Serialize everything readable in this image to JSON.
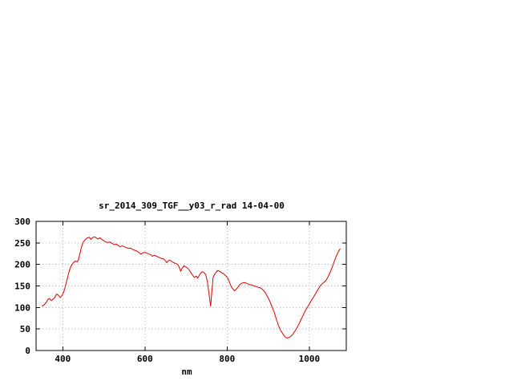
{
  "chart_data": {
    "type": "line",
    "title": "sr_2014_309_TGF__y03_r_rad 14-04-00",
    "xlabel": "nm",
    "ylabel": "",
    "xlim": [
      335,
      1090
    ],
    "ylim": [
      0,
      300
    ],
    "x_ticks": [
      400,
      600,
      800,
      1000
    ],
    "y_ticks": [
      0,
      50,
      100,
      150,
      200,
      250,
      300
    ],
    "grid": true,
    "legend": "none",
    "line_color": "#dd0000",
    "grid_color": "#b4b4b4",
    "border_color": "#000000",
    "series": [
      {
        "name": "sr_2014_309_TGF__y03_r_rad",
        "x": [
          350,
          355,
          360,
          363,
          367,
          372,
          376,
          380,
          385,
          390,
          394,
          398,
          402,
          406,
          410,
          415,
          420,
          425,
          430,
          435,
          438,
          442,
          446,
          450,
          455,
          460,
          465,
          468,
          472,
          476,
          480,
          485,
          490,
          495,
          500,
          505,
          510,
          515,
          520,
          525,
          530,
          535,
          540,
          545,
          550,
          555,
          560,
          565,
          570,
          575,
          580,
          585,
          590,
          595,
          600,
          605,
          610,
          615,
          618,
          622,
          626,
          630,
          635,
          640,
          645,
          650,
          653,
          656,
          660,
          665,
          670,
          675,
          680,
          684,
          687,
          690,
          695,
          700,
          705,
          710,
          715,
          720,
          725,
          728,
          732,
          736,
          740,
          744,
          748,
          752,
          756,
          760,
          763,
          766,
          770,
          774,
          778,
          782,
          786,
          790,
          794,
          798,
          802,
          806,
          810,
          814,
          818,
          822,
          826,
          830,
          835,
          840,
          845,
          850,
          855,
          860,
          865,
          870,
          875,
          880,
          885,
          890,
          895,
          900,
          905,
          910,
          915,
          920,
          925,
          930,
          935,
          938,
          942,
          946,
          950,
          955,
          960,
          965,
          970,
          975,
          980,
          985,
          990,
          995,
          1000,
          1005,
          1010,
          1015,
          1020,
          1025,
          1030,
          1035,
          1040,
          1045,
          1050,
          1055,
          1060,
          1065,
          1070,
          1075
        ],
        "y": [
          103,
          107,
          112,
          118,
          121,
          116,
          119,
          123,
          131,
          128,
          123,
          128,
          135,
          148,
          163,
          182,
          196,
          203,
          208,
          206,
          210,
          226,
          242,
          252,
          258,
          262,
          263,
          258,
          262,
          264,
          263,
          259,
          262,
          258,
          255,
          252,
          251,
          252,
          249,
          246,
          247,
          244,
          241,
          243,
          241,
          239,
          237,
          238,
          235,
          233,
          231,
          228,
          224,
          227,
          228,
          226,
          224,
          222,
          219,
          221,
          220,
          218,
          216,
          214,
          213,
          208,
          204,
          208,
          210,
          207,
          204,
          202,
          200,
          192,
          184,
          190,
          197,
          194,
          190,
          184,
          176,
          170,
          173,
          168,
          174,
          180,
          183,
          181,
          176,
          160,
          130,
          103,
          140,
          170,
          178,
          183,
          186,
          184,
          181,
          179,
          176,
          172,
          168,
          158,
          148,
          143,
          139,
          142,
          147,
          152,
          156,
          158,
          157,
          155,
          153,
          152,
          150,
          149,
          147,
          146,
          143,
          138,
          131,
          122,
          112,
          100,
          88,
          72,
          58,
          47,
          40,
          35,
          31,
          29,
          30,
          33,
          38,
          45,
          53,
          62,
          72,
          82,
          92,
          100,
          108,
          116,
          124,
          132,
          140,
          148,
          154,
          158,
          162,
          170,
          180,
          192,
          205,
          218,
          228,
          236
        ]
      }
    ]
  }
}
